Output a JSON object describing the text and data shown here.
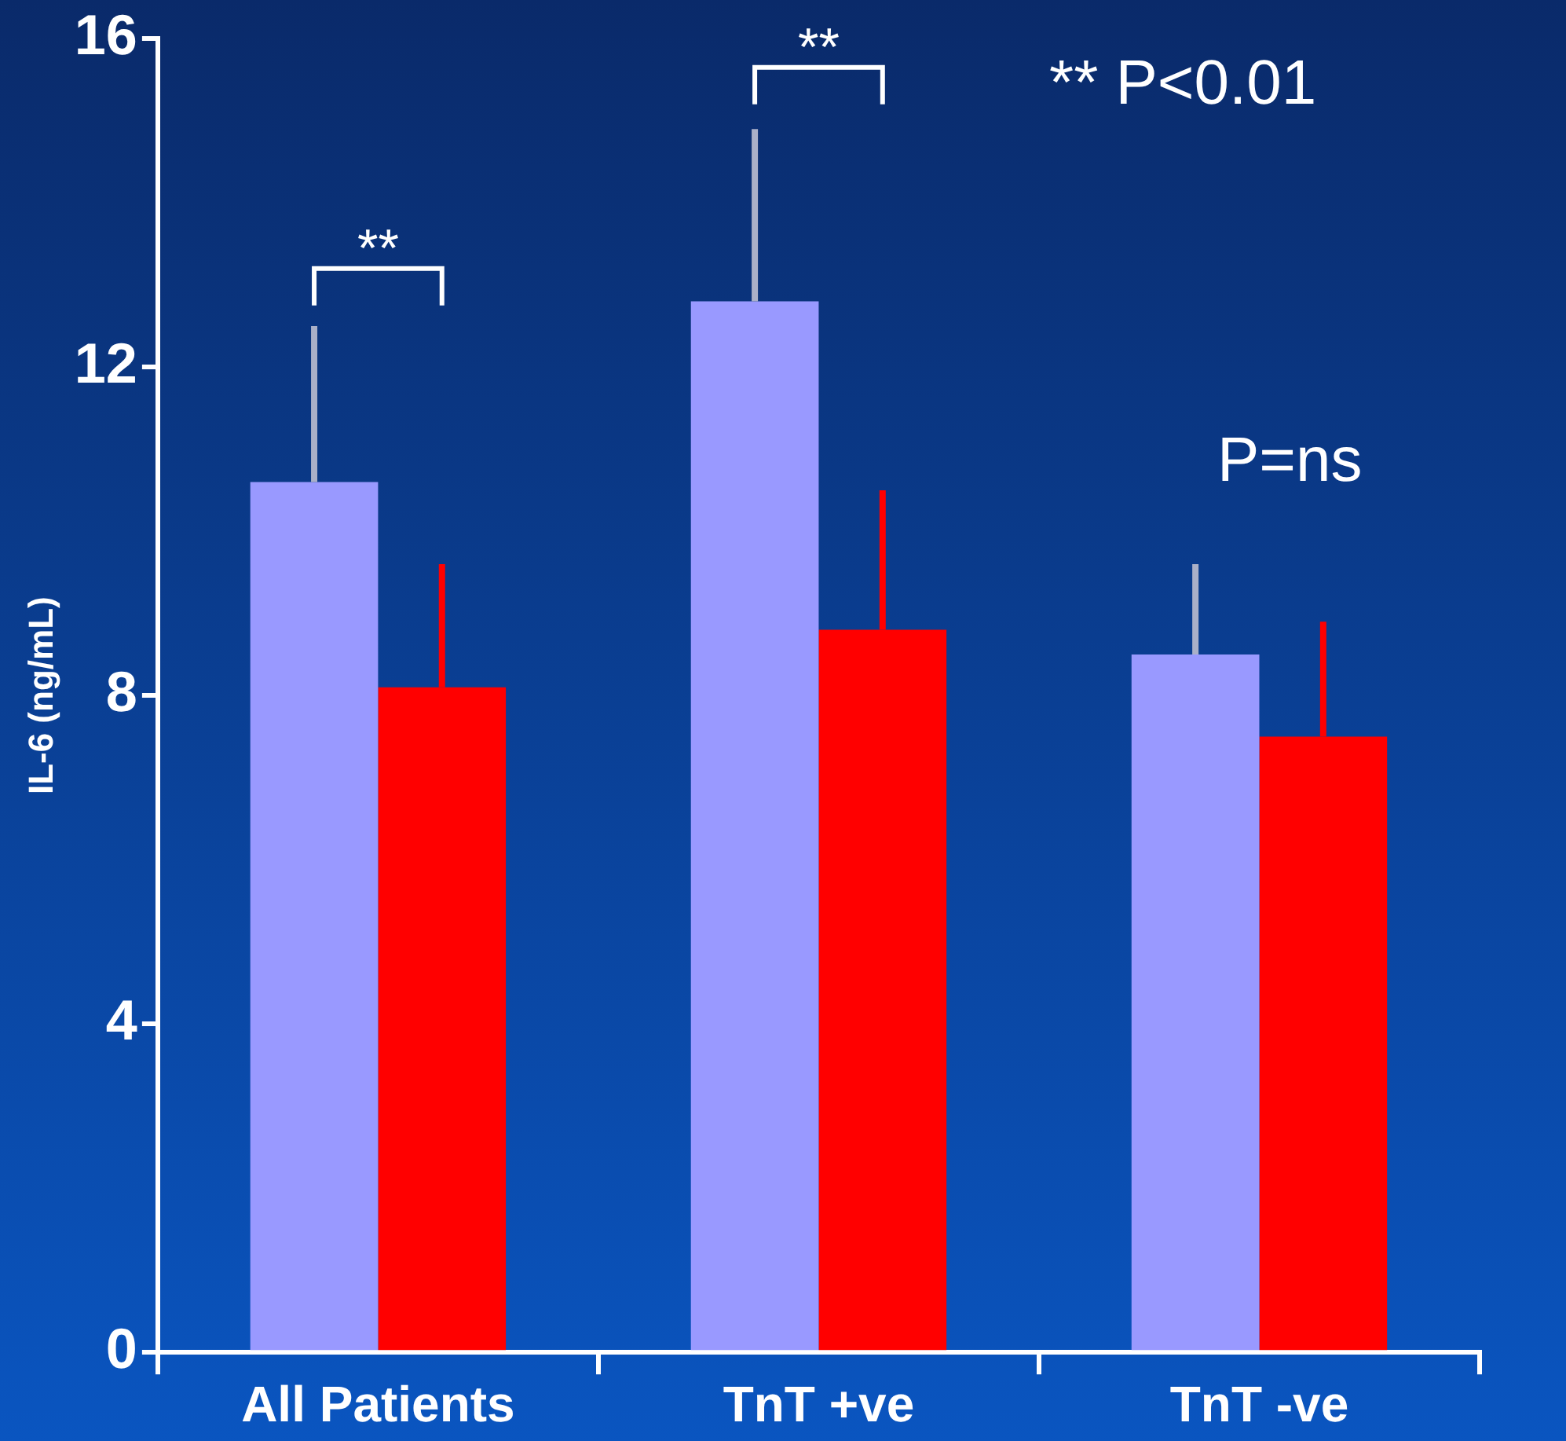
{
  "chart_data": {
    "type": "bar",
    "ylabel": "IL-6 (ng/mL)",
    "categories": [
      "All Patients",
      "TnT +ve",
      "TnT -ve"
    ],
    "series": [
      {
        "color": "#9999ff",
        "values": [
          10.6,
          12.8,
          8.5
        ],
        "errors": [
          [
            10.6,
            12.5
          ],
          [
            12.8,
            14.9
          ],
          [
            8.5,
            9.6
          ]
        ]
      },
      {
        "color": "#ff0000",
        "values": [
          8.1,
          8.8,
          7.5
        ],
        "errors": [
          [
            8.1,
            9.6
          ],
          [
            8.8,
            10.5
          ],
          [
            7.5,
            8.9
          ]
        ]
      }
    ],
    "ylim": [
      0,
      16
    ],
    "yticks": [
      0,
      4,
      8,
      12,
      16
    ],
    "grid": false,
    "legend": false,
    "annotations": [
      "**",
      "**",
      "** P<0.01",
      "P=ns"
    ]
  }
}
